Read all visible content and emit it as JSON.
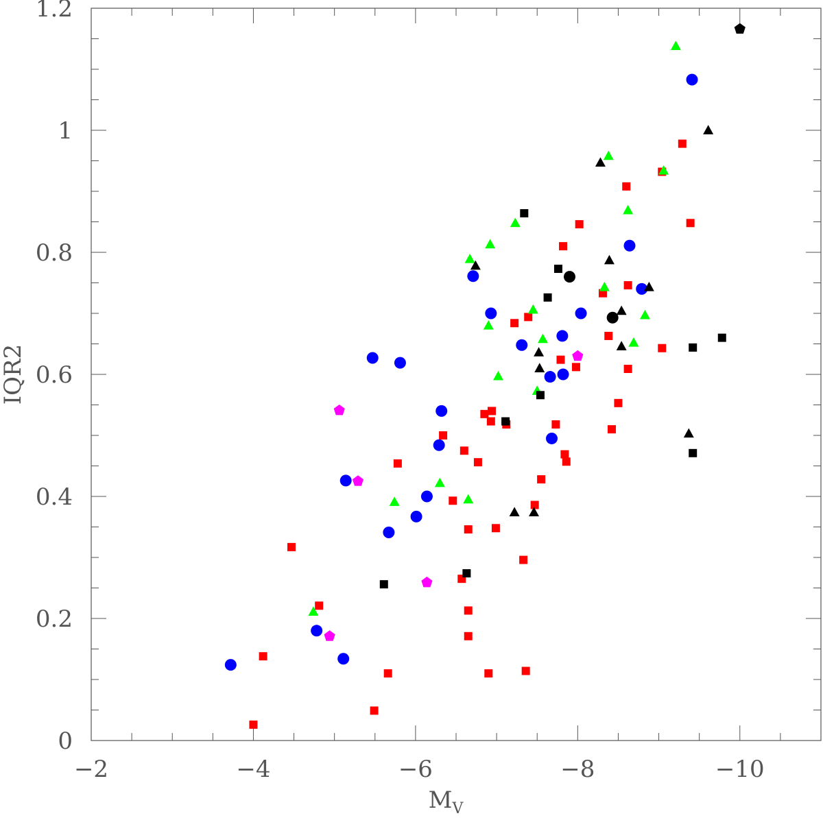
{
  "chart_data": {
    "type": "scatter",
    "xlabel": "M",
    "xlabel_sub": "V",
    "ylabel": "IQR2",
    "xlim": [
      -2,
      -11
    ],
    "ylim": [
      0,
      1.2
    ],
    "x_ticks": [
      -2,
      -4,
      -6,
      -8,
      -10
    ],
    "x_tick_labels": [
      "−2",
      "−4",
      "−6",
      "−8",
      "−10"
    ],
    "y_ticks": [
      0,
      0.2,
      0.4,
      0.6,
      0.8,
      1,
      1.2
    ],
    "y_tick_labels": [
      "0",
      "0.2",
      "0.4",
      "0.6",
      "0.8",
      "1",
      "1.2"
    ],
    "grid": false,
    "series": [
      {
        "marker": "circle",
        "color": "#0000ff",
        "points": [
          [
            -3.72,
            0.124
          ],
          [
            -4.78,
            0.18
          ],
          [
            -5.11,
            0.134
          ],
          [
            -5.14,
            0.426
          ],
          [
            -5.47,
            0.627
          ],
          [
            -5.67,
            0.341
          ],
          [
            -5.81,
            0.619
          ],
          [
            -6.01,
            0.367
          ],
          [
            -6.14,
            0.4
          ],
          [
            -6.29,
            0.484
          ],
          [
            -6.32,
            0.54
          ],
          [
            -6.71,
            0.761
          ],
          [
            -6.93,
            0.7
          ],
          [
            -7.31,
            0.648
          ],
          [
            -7.66,
            0.596
          ],
          [
            -7.68,
            0.495
          ],
          [
            -7.81,
            0.663
          ],
          [
            -7.82,
            0.6
          ],
          [
            -8.04,
            0.7
          ],
          [
            -8.64,
            0.811
          ],
          [
            -8.79,
            0.74
          ],
          [
            -9.41,
            1.083
          ]
        ]
      },
      {
        "marker": "square",
        "color": "#ff0000",
        "points": [
          [
            -4.0,
            0.026
          ],
          [
            -4.12,
            0.138
          ],
          [
            -4.47,
            0.317
          ],
          [
            -4.81,
            0.221
          ],
          [
            -5.49,
            0.049
          ],
          [
            -5.66,
            0.11
          ],
          [
            -5.78,
            0.454
          ],
          [
            -6.34,
            0.5
          ],
          [
            -6.46,
            0.393
          ],
          [
            -6.57,
            0.265
          ],
          [
            -6.6,
            0.475
          ],
          [
            -6.65,
            0.346
          ],
          [
            -6.65,
            0.213
          ],
          [
            -6.65,
            0.171
          ],
          [
            -6.77,
            0.456
          ],
          [
            -6.85,
            0.535
          ],
          [
            -6.9,
            0.11
          ],
          [
            -6.93,
            0.523
          ],
          [
            -6.94,
            0.54
          ],
          [
            -6.99,
            0.348
          ],
          [
            -7.12,
            0.518
          ],
          [
            -7.22,
            0.684
          ],
          [
            -7.33,
            0.296
          ],
          [
            -7.36,
            0.114
          ],
          [
            -7.39,
            0.694
          ],
          [
            -7.47,
            0.386
          ],
          [
            -7.55,
            0.428
          ],
          [
            -7.73,
            0.518
          ],
          [
            -7.79,
            0.624
          ],
          [
            -7.82,
            0.81
          ],
          [
            -7.84,
            0.469
          ],
          [
            -7.86,
            0.457
          ],
          [
            -7.98,
            0.612
          ],
          [
            -8.02,
            0.846
          ],
          [
            -8.31,
            0.733
          ],
          [
            -8.38,
            0.663
          ],
          [
            -8.42,
            0.51
          ],
          [
            -8.5,
            0.553
          ],
          [
            -8.6,
            0.908
          ],
          [
            -8.62,
            0.609
          ],
          [
            -8.62,
            0.746
          ],
          [
            -9.04,
            0.643
          ],
          [
            -9.04,
            0.932
          ],
          [
            -9.29,
            0.978
          ],
          [
            -9.39,
            0.848
          ]
        ]
      },
      {
        "marker": "triangle",
        "color": "#00ff00",
        "points": [
          [
            -4.74,
            0.211
          ],
          [
            -5.74,
            0.391
          ],
          [
            -6.3,
            0.422
          ],
          [
            -6.65,
            0.395
          ],
          [
            -6.67,
            0.789
          ],
          [
            -6.9,
            0.68
          ],
          [
            -6.92,
            0.813
          ],
          [
            -7.02,
            0.597
          ],
          [
            -7.23,
            0.848
          ],
          [
            -7.45,
            0.706
          ],
          [
            -7.5,
            0.573
          ],
          [
            -7.57,
            0.658
          ],
          [
            -8.33,
            0.743
          ],
          [
            -8.38,
            0.958
          ],
          [
            -8.62,
            0.869
          ],
          [
            -8.69,
            0.652
          ],
          [
            -8.83,
            0.697
          ],
          [
            -9.06,
            0.934
          ],
          [
            -9.21,
            1.138
          ]
        ]
      },
      {
        "marker": "triangle",
        "color": "#000000",
        "points": [
          [
            -6.74,
            0.778
          ],
          [
            -7.22,
            0.374
          ],
          [
            -7.46,
            0.374
          ],
          [
            -7.52,
            0.636
          ],
          [
            -7.53,
            0.61
          ],
          [
            -8.28,
            0.947
          ],
          [
            -8.39,
            0.787
          ],
          [
            -8.54,
            0.704
          ],
          [
            -8.54,
            0.646
          ],
          [
            -8.88,
            0.743
          ],
          [
            -9.37,
            0.503
          ],
          [
            -9.61,
            1.0
          ]
        ]
      },
      {
        "marker": "square",
        "color": "#000000",
        "points": [
          [
            -5.61,
            0.256
          ],
          [
            -6.63,
            0.274
          ],
          [
            -7.11,
            0.523
          ],
          [
            -7.34,
            0.864
          ],
          [
            -7.54,
            0.566
          ],
          [
            -7.63,
            0.726
          ],
          [
            -7.76,
            0.773
          ],
          [
            -9.42,
            0.644
          ],
          [
            -9.42,
            0.471
          ],
          [
            -9.78,
            0.66
          ]
        ]
      },
      {
        "marker": "circle",
        "color": "#000000",
        "points": [
          [
            -7.9,
            0.76
          ],
          [
            -8.43,
            0.693
          ]
        ]
      },
      {
        "marker": "pentagon",
        "color": "#ff00ff",
        "points": [
          [
            -4.94,
            0.171
          ],
          [
            -5.06,
            0.541
          ],
          [
            -5.29,
            0.425
          ],
          [
            -6.14,
            0.259
          ],
          [
            -8.0,
            0.63
          ]
        ]
      },
      {
        "marker": "pentagon",
        "color": "#000000",
        "points": [
          [
            -10.0,
            1.166
          ]
        ]
      }
    ]
  }
}
